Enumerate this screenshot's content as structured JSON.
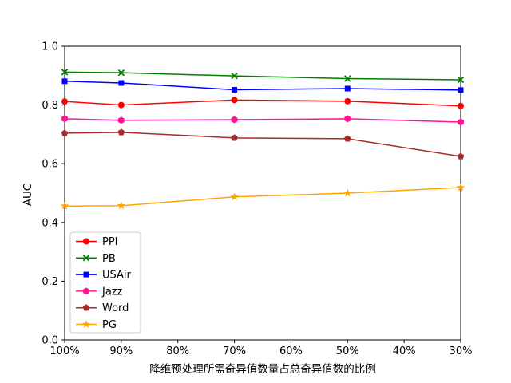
{
  "figure": {
    "background_color": "#ffffff",
    "axes_color": "#000000",
    "text_color": "#000000",
    "legend_border_color": "#cccccc",
    "legend_background": "#ffffff"
  },
  "chart_data": {
    "type": "line",
    "title": "",
    "xlabel": "降维预处理所需奇异值数量占总奇异值数的比例",
    "ylabel": "AUC",
    "x_tick_labels": [
      "100%",
      "90%",
      "80%",
      "70%",
      "60%",
      "50%",
      "40%",
      "30%"
    ],
    "y_tick_labels": [
      "0.0",
      "0.2",
      "0.4",
      "0.6",
      "0.8",
      "1.0"
    ],
    "y_tick_values": [
      0.0,
      0.2,
      0.4,
      0.6,
      0.8,
      1.0
    ],
    "ylim": [
      0.0,
      1.0
    ],
    "xlim_percent": [
      100,
      30
    ],
    "grid": false,
    "legend_position": "lower-left",
    "x_percent": [
      100,
      90,
      70,
      50,
      30
    ],
    "series": [
      {
        "name": "PPI",
        "color": "#ff0000",
        "marker": "circle",
        "values": [
          0.812,
          0.8,
          0.817,
          0.813,
          0.797
        ]
      },
      {
        "name": "PB",
        "color": "#008000",
        "marker": "x",
        "values": [
          0.912,
          0.91,
          0.899,
          0.89,
          0.886
        ]
      },
      {
        "name": "USAir",
        "color": "#0000ff",
        "marker": "square",
        "values": [
          0.881,
          0.875,
          0.852,
          0.856,
          0.851
        ]
      },
      {
        "name": "Jazz",
        "color": "#ff1493",
        "marker": "hexagon",
        "values": [
          0.753,
          0.748,
          0.75,
          0.753,
          0.742
        ]
      },
      {
        "name": "Word",
        "color": "#a52a2a",
        "marker": "pentagon",
        "values": [
          0.704,
          0.707,
          0.688,
          0.685,
          0.625
        ]
      },
      {
        "name": "PG",
        "color": "#ffa500",
        "marker": "star",
        "values": [
          0.456,
          0.457,
          0.487,
          0.5,
          0.519
        ]
      }
    ]
  }
}
